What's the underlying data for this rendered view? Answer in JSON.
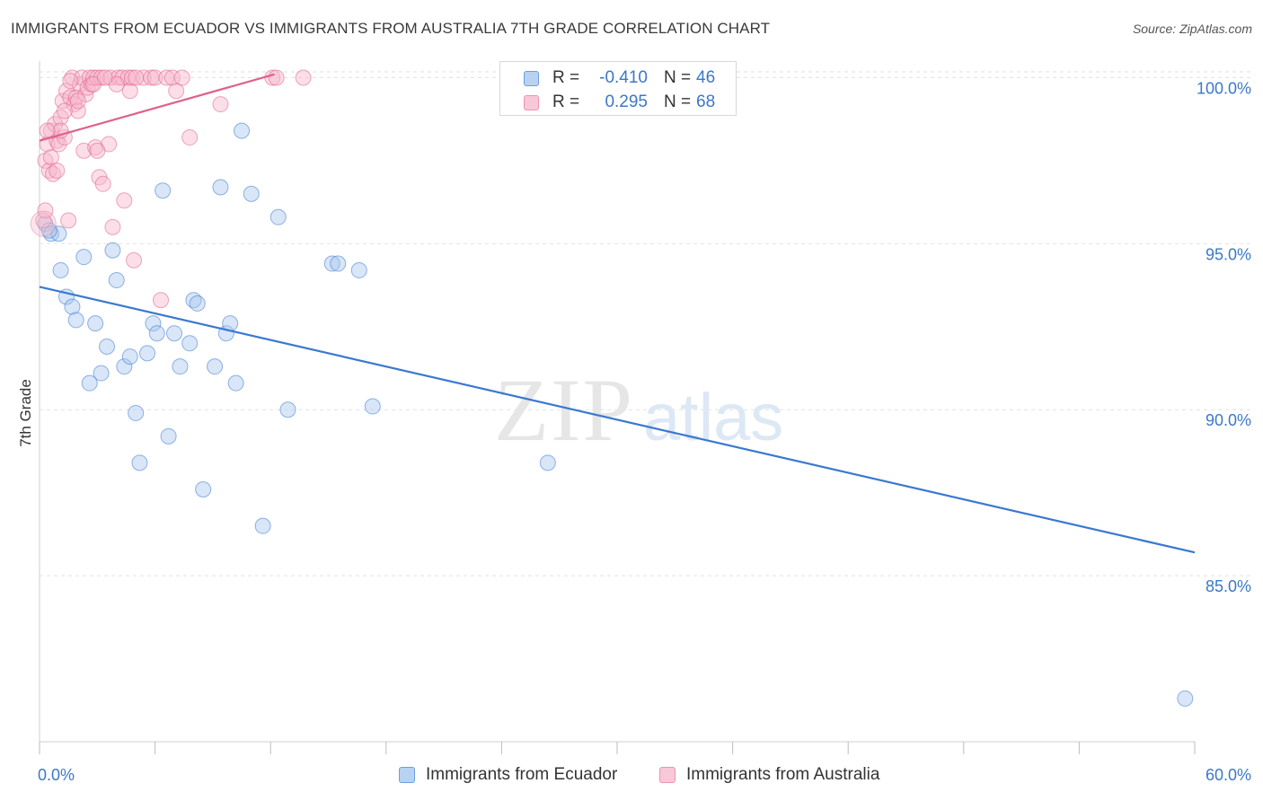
{
  "header": {
    "title": "IMMIGRANTS FROM ECUADOR VS IMMIGRANTS FROM AUSTRALIA 7TH GRADE CORRELATION CHART",
    "source": "Source: ZipAtlas.com"
  },
  "watermark": {
    "zip": "ZIP",
    "atlas": "atlas"
  },
  "legend": {
    "rows": [
      {
        "r_label": "R =",
        "r_value": "-0.410",
        "n_label": "N =",
        "n_value": "46",
        "color": "#a9c8ee"
      },
      {
        "r_label": "R =",
        "r_value": "0.295",
        "n_label": "N =",
        "n_value": "68",
        "color": "#f6b6cb"
      }
    ]
  },
  "chart_data": {
    "type": "scatter",
    "title": "IMMIGRANTS FROM ECUADOR VS IMMIGRANTS FROM AUSTRALIA 7TH GRADE CORRELATION CHART",
    "xlabel": "",
    "ylabel": "7th Grade",
    "xlim": [
      0,
      60
    ],
    "ylim": [
      80.0,
      100.5
    ],
    "x_tick_labels": [
      "0.0%",
      "60.0%"
    ],
    "y_ticks": [
      85,
      90,
      95,
      100
    ],
    "y_tick_labels": [
      "85.0%",
      "90.0%",
      "95.0%",
      "100.0%"
    ],
    "grid": true,
    "legend_position": "top-center",
    "series": [
      {
        "name": "Immigrants from Ecuador",
        "color": "#3a78d0",
        "fill": "#a9c8ee",
        "trend": {
          "x": [
            0,
            60
          ],
          "y": [
            93.7,
            85.7
          ]
        },
        "points": [
          [
            0.3,
            95.6
          ],
          [
            0.6,
            95.3
          ],
          [
            1.0,
            95.3
          ],
          [
            1.1,
            94.2
          ],
          [
            1.4,
            93.4
          ],
          [
            1.7,
            93.1
          ],
          [
            1.9,
            92.7
          ],
          [
            2.3,
            94.6
          ],
          [
            2.6,
            90.8
          ],
          [
            2.9,
            92.6
          ],
          [
            3.2,
            91.1
          ],
          [
            3.5,
            91.9
          ],
          [
            3.8,
            94.8
          ],
          [
            4.0,
            93.9
          ],
          [
            4.4,
            91.3
          ],
          [
            4.7,
            91.6
          ],
          [
            5.0,
            89.9
          ],
          [
            5.2,
            88.4
          ],
          [
            5.6,
            91.7
          ],
          [
            5.9,
            92.6
          ],
          [
            6.1,
            92.3
          ],
          [
            6.4,
            96.6
          ],
          [
            6.7,
            89.2
          ],
          [
            7.0,
            92.3
          ],
          [
            7.3,
            91.3
          ],
          [
            7.8,
            92.0
          ],
          [
            8.0,
            93.3
          ],
          [
            8.2,
            93.2
          ],
          [
            8.5,
            87.6
          ],
          [
            9.1,
            91.3
          ],
          [
            9.4,
            96.7
          ],
          [
            9.7,
            92.3
          ],
          [
            9.9,
            92.6
          ],
          [
            10.2,
            90.8
          ],
          [
            10.5,
            98.4
          ],
          [
            11.0,
            96.5
          ],
          [
            11.6,
            86.5
          ],
          [
            12.4,
            95.8
          ],
          [
            12.9,
            90.0
          ],
          [
            15.2,
            94.4
          ],
          [
            15.5,
            94.4
          ],
          [
            16.6,
            94.2
          ],
          [
            17.3,
            90.1
          ],
          [
            26.4,
            88.4
          ],
          [
            59.5,
            81.3
          ],
          [
            0.5,
            95.4
          ]
        ]
      },
      {
        "name": "Immigrants from Australia",
        "color": "#e0608c",
        "fill": "#f6b6cb",
        "trend": {
          "x": [
            0,
            12.2
          ],
          "y": [
            98.1,
            100.1
          ]
        },
        "points": [
          [
            0.2,
            95.7
          ],
          [
            0.3,
            97.5
          ],
          [
            0.4,
            98.0
          ],
          [
            0.5,
            97.2
          ],
          [
            0.6,
            98.4
          ],
          [
            0.7,
            97.1
          ],
          [
            0.8,
            98.6
          ],
          [
            0.9,
            98.1
          ],
          [
            1.0,
            98.0
          ],
          [
            1.1,
            98.8
          ],
          [
            1.2,
            99.3
          ],
          [
            1.3,
            98.2
          ],
          [
            1.4,
            99.6
          ],
          [
            1.5,
            95.7
          ],
          [
            1.6,
            99.4
          ],
          [
            1.7,
            100.0
          ],
          [
            1.8,
            99.2
          ],
          [
            1.9,
            99.4
          ],
          [
            2.0,
            99.0
          ],
          [
            2.1,
            99.8
          ],
          [
            2.2,
            100.0
          ],
          [
            2.3,
            97.8
          ],
          [
            2.4,
            99.5
          ],
          [
            2.5,
            99.7
          ],
          [
            2.6,
            100.0
          ],
          [
            2.7,
            99.8
          ],
          [
            2.8,
            100.0
          ],
          [
            2.9,
            97.9
          ],
          [
            3.0,
            100.0
          ],
          [
            3.1,
            97.0
          ],
          [
            3.2,
            100.0
          ],
          [
            3.3,
            96.8
          ],
          [
            3.6,
            98.0
          ],
          [
            3.7,
            100.0
          ],
          [
            3.8,
            95.5
          ],
          [
            4.1,
            100.0
          ],
          [
            4.3,
            100.0
          ],
          [
            4.4,
            96.3
          ],
          [
            4.6,
            100.0
          ],
          [
            4.7,
            99.6
          ],
          [
            4.8,
            100.0
          ],
          [
            4.9,
            94.5
          ],
          [
            5.4,
            100.0
          ],
          [
            5.8,
            100.0
          ],
          [
            6.0,
            100.0
          ],
          [
            6.3,
            93.3
          ],
          [
            6.6,
            100.0
          ],
          [
            6.9,
            100.0
          ],
          [
            7.1,
            99.6
          ],
          [
            7.4,
            100.0
          ],
          [
            7.8,
            98.2
          ],
          [
            9.4,
            99.2
          ],
          [
            12.1,
            100.0
          ],
          [
            12.3,
            100.0
          ],
          [
            13.7,
            100.0
          ],
          [
            0.6,
            97.6
          ],
          [
            0.9,
            97.2
          ],
          [
            1.1,
            98.4
          ],
          [
            1.3,
            99.0
          ],
          [
            2.0,
            99.3
          ],
          [
            3.0,
            97.8
          ],
          [
            4.0,
            99.8
          ],
          [
            5.0,
            100.0
          ],
          [
            0.4,
            98.4
          ],
          [
            1.6,
            99.9
          ],
          [
            2.8,
            99.8
          ],
          [
            3.4,
            100.0
          ],
          [
            0.3,
            96.0
          ]
        ]
      }
    ]
  },
  "bottom_legend": {
    "items": [
      {
        "label": "Immigrants from Ecuador",
        "color": "#a9c8ee",
        "border": "#6d9ee0"
      },
      {
        "label": "Immigrants from Australia",
        "color": "#f6c6d6",
        "border": "#e895b2"
      }
    ]
  }
}
